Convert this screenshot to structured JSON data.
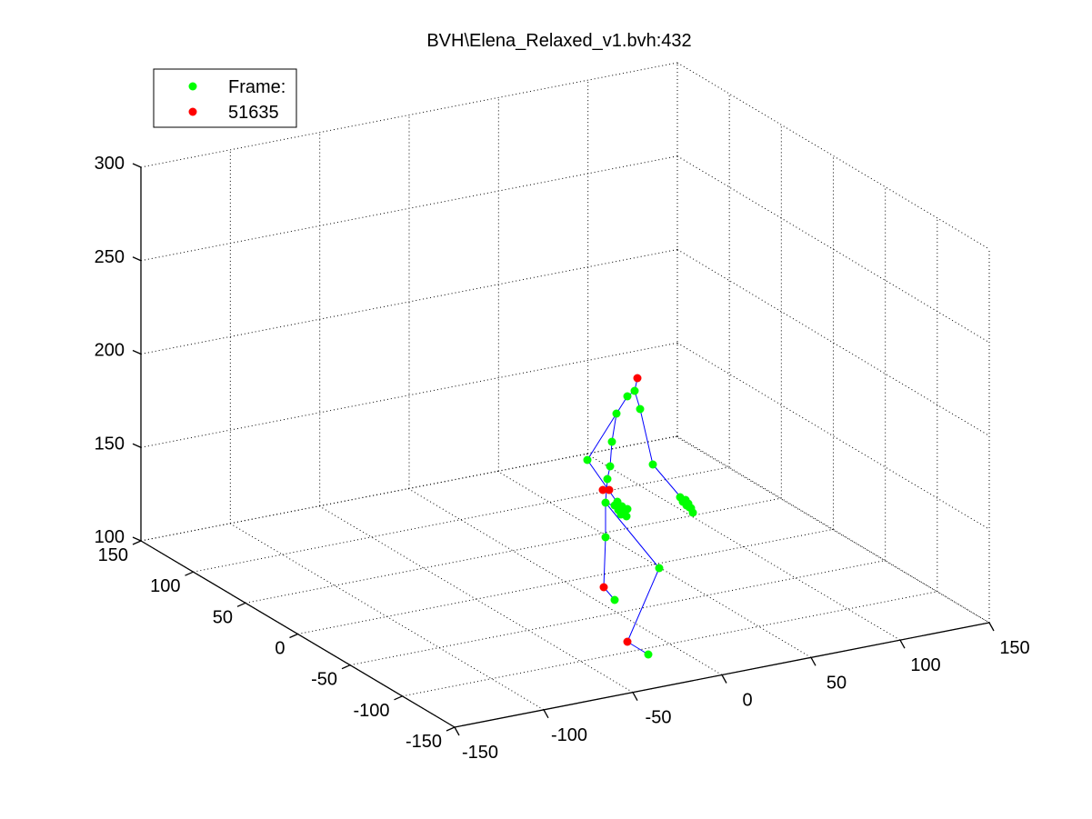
{
  "chart_data": {
    "type": "scatter",
    "title": "BVH\\Elena_Relaxed_v1.bvh:432",
    "legend": {
      "placement": "top-left",
      "entries": [
        {
          "label": "Frame:",
          "color": "#00ff00"
        },
        {
          "label": "51635",
          "color": "#ff0000"
        }
      ]
    },
    "axes": {
      "x": {
        "ticks": [
          "-150",
          "-100",
          "-50",
          "0",
          "50",
          "100",
          "150"
        ],
        "range": [
          -150,
          150
        ]
      },
      "y": {
        "ticks": [
          "-150",
          "-100",
          "-50",
          "0",
          "50",
          "100",
          "150"
        ],
        "range": [
          -150,
          150
        ]
      },
      "z": {
        "ticks": [
          "100",
          "150",
          "200",
          "250",
          "300"
        ],
        "range": [
          100,
          300
        ]
      }
    },
    "grid": true,
    "colors": {
      "joint": "#00ff00",
      "end_effector": "#ff0000",
      "bone": "#0000ff"
    },
    "note_series": [
      {
        "name": "Frame:",
        "marker": "green dot"
      },
      {
        "name": "51635",
        "marker": "red dot"
      }
    ]
  }
}
